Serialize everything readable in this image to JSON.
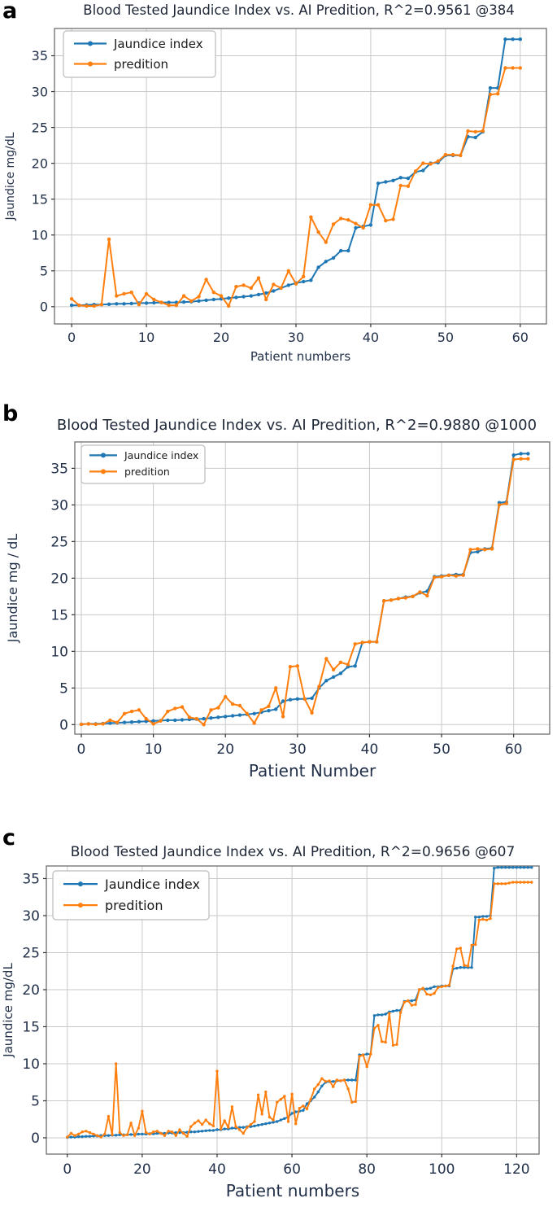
{
  "page": {
    "background": "#ffffff"
  },
  "text_colors": {
    "axis": "#22304a",
    "title": "#1e2736",
    "panel_letter": "#000000",
    "grid": "#c9c9c9",
    "spine": "#6e6e6e"
  },
  "panels": [
    {
      "letter": "a"
    },
    {
      "letter": "b"
    },
    {
      "letter": "c"
    }
  ],
  "chart_data": [
    {
      "type": "line",
      "title": "Blood Tested Jaundice Index vs. AI Predition, R^2=0.9561 @384",
      "xlabel": "Patient numbers",
      "ylabel": "Jaundice mg/dL",
      "xlim": [
        -2.3,
        63.5
      ],
      "ylim": [
        -2.4,
        38.8
      ],
      "xticks": [
        0,
        10,
        20,
        30,
        40,
        50,
        60
      ],
      "yticks": [
        0,
        5,
        10,
        15,
        20,
        25,
        30,
        35
      ],
      "grid": true,
      "legend_position": "upper-left",
      "series": [
        {
          "name": "Jaundice index",
          "color": "#1f77b4",
          "values": [
            0.2,
            0.2,
            0.25,
            0.3,
            0.3,
            0.35,
            0.4,
            0.4,
            0.45,
            0.5,
            0.5,
            0.55,
            0.6,
            0.6,
            0.6,
            0.65,
            0.7,
            0.8,
            0.9,
            1.0,
            1.1,
            1.2,
            1.3,
            1.4,
            1.5,
            1.7,
            1.9,
            2.2,
            2.6,
            3.0,
            3.3,
            3.5,
            3.7,
            5.5,
            6.3,
            6.8,
            7.8,
            7.8,
            11.0,
            11.2,
            11.4,
            17.2,
            17.4,
            17.6,
            18.0,
            17.9,
            18.8,
            19.0,
            20.0,
            20.1,
            21.1,
            21.1,
            21.1,
            23.7,
            23.6,
            24.4,
            30.5,
            30.5,
            37.3,
            37.3,
            37.3
          ]
        },
        {
          "name": "predition",
          "color": "#ff7f0e",
          "values": [
            1.1,
            0.2,
            0.1,
            0.1,
            0.3,
            9.4,
            1.5,
            1.8,
            2.0,
            0.3,
            1.8,
            1.0,
            0.6,
            0.2,
            0.2,
            1.5,
            0.8,
            1.4,
            3.8,
            2.0,
            1.5,
            0.1,
            2.8,
            3.0,
            2.6,
            4.0,
            1.0,
            3.1,
            2.6,
            5.0,
            3.2,
            4.2,
            12.5,
            10.4,
            9.0,
            11.5,
            12.3,
            12.1,
            11.6,
            11.0,
            14.2,
            14.2,
            12.0,
            12.2,
            16.9,
            16.8,
            18.9,
            20.0,
            19.9,
            20.3,
            21.2,
            21.2,
            21.1,
            24.5,
            24.4,
            24.5,
            29.6,
            29.7,
            33.3,
            33.3,
            33.3
          ]
        }
      ]
    },
    {
      "type": "line",
      "title": "Blood Tested Jaundice Index vs. AI Predition, R^2=0.9880 @1000",
      "xlabel": "Patient Number",
      "ylabel": "Jaundice mg / dL",
      "xlim": [
        -0.9,
        65
      ],
      "ylim": [
        -1.3,
        38.6
      ],
      "xticks": [
        0,
        10,
        20,
        30,
        40,
        50,
        60
      ],
      "yticks": [
        0,
        5,
        10,
        15,
        20,
        25,
        30,
        35
      ],
      "grid": true,
      "legend_position": "upper-left",
      "series": [
        {
          "name": "Jaundice index",
          "color": "#1f77b4",
          "values": [
            0.05,
            0.1,
            0.1,
            0.15,
            0.2,
            0.25,
            0.3,
            0.35,
            0.4,
            0.45,
            0.5,
            0.55,
            0.6,
            0.6,
            0.65,
            0.7,
            0.75,
            0.8,
            0.9,
            1.0,
            1.1,
            1.2,
            1.3,
            1.4,
            1.5,
            1.7,
            1.9,
            2.1,
            3.2,
            3.4,
            3.5,
            3.5,
            3.6,
            5.0,
            6.0,
            6.5,
            7.0,
            7.9,
            8.0,
            11.2,
            11.3,
            11.3,
            16.9,
            17.0,
            17.2,
            17.4,
            17.5,
            18.0,
            18.2,
            20.2,
            20.3,
            20.4,
            20.5,
            20.5,
            23.5,
            23.6,
            24.0,
            24.1,
            30.3,
            30.4,
            36.8,
            37.0,
            37.0
          ]
        },
        {
          "name": "predition",
          "color": "#ff7f0e",
          "values": [
            0.05,
            0.1,
            0.05,
            0.1,
            0.6,
            0.3,
            1.5,
            1.8,
            2.0,
            0.8,
            0.1,
            0.5,
            1.8,
            2.2,
            2.4,
            1.0,
            0.8,
            0.0,
            2.0,
            2.3,
            3.8,
            2.8,
            2.6,
            1.5,
            0.2,
            2.0,
            2.5,
            5.0,
            1.1,
            7.9,
            8.0,
            3.5,
            1.6,
            5.2,
            9.0,
            7.5,
            8.5,
            8.2,
            11.0,
            11.2,
            11.3,
            11.3,
            16.9,
            17.0,
            17.2,
            17.3,
            17.5,
            18.1,
            17.6,
            20.1,
            20.2,
            20.4,
            20.3,
            20.4,
            23.9,
            24.0,
            23.9,
            24.0,
            30.0,
            30.2,
            36.2,
            36.3,
            36.3
          ]
        }
      ]
    },
    {
      "type": "line",
      "title": "Blood Tested Jaundice Index vs. AI Predition, R^2=0.9656 @607",
      "xlabel": "Patient numbers",
      "ylabel": "Jaundice mg/dL",
      "xlim": [
        -5.6,
        126
      ],
      "ylim": [
        -2.2,
        36.7
      ],
      "xticks": [
        0,
        20,
        40,
        60,
        80,
        100,
        120
      ],
      "yticks": [
        0,
        5,
        10,
        15,
        20,
        25,
        30,
        35
      ],
      "grid": true,
      "legend_position": "upper-left",
      "series": [
        {
          "name": "Jaundice index",
          "color": "#1f77b4",
          "values": [
            0.05,
            0.1,
            0.1,
            0.15,
            0.15,
            0.2,
            0.2,
            0.25,
            0.25,
            0.3,
            0.3,
            0.3,
            0.35,
            0.35,
            0.4,
            0.4,
            0.4,
            0.45,
            0.45,
            0.5,
            0.5,
            0.5,
            0.55,
            0.55,
            0.6,
            0.6,
            0.6,
            0.65,
            0.65,
            0.7,
            0.7,
            0.7,
            0.75,
            0.8,
            0.8,
            0.85,
            0.9,
            0.95,
            1.0,
            1.0,
            1.1,
            1.1,
            1.2,
            1.2,
            1.3,
            1.3,
            1.4,
            1.4,
            1.5,
            1.5,
            1.6,
            1.7,
            1.8,
            1.9,
            2.0,
            2.1,
            2.2,
            2.4,
            2.6,
            2.8,
            3.3,
            3.5,
            3.6,
            3.7,
            4.6,
            5.0,
            5.5,
            6.2,
            7.0,
            7.5,
            7.6,
            7.6,
            7.7,
            7.7,
            7.8,
            7.8,
            7.8,
            7.8,
            11.2,
            11.2,
            11.3,
            11.3,
            16.5,
            16.6,
            16.6,
            16.7,
            17.0,
            17.1,
            17.2,
            17.2,
            18.4,
            18.5,
            18.5,
            18.6,
            20.0,
            20.1,
            20.1,
            20.2,
            20.4,
            20.4,
            20.5,
            20.5,
            20.5,
            22.8,
            22.9,
            23.0,
            23.0,
            23.0,
            23.0,
            29.8,
            29.8,
            29.9,
            29.9,
            30.0,
            36.4,
            36.5,
            36.5,
            36.5,
            36.5,
            36.5,
            36.5,
            36.5,
            36.5,
            36.5,
            36.5
          ]
        },
        {
          "name": "predition",
          "color": "#ff7f0e",
          "values": [
            0.1,
            0.6,
            0.3,
            0.5,
            0.8,
            0.9,
            0.7,
            0.5,
            0.3,
            0.1,
            0.5,
            2.9,
            0.4,
            10.0,
            0.7,
            0.3,
            0.4,
            2.0,
            0.3,
            1.3,
            3.6,
            0.7,
            0.5,
            0.8,
            0.9,
            0.6,
            0.3,
            0.9,
            0.8,
            0.3,
            1.1,
            0.6,
            0.2,
            1.5,
            2.0,
            2.3,
            1.8,
            2.4,
            1.9,
            1.6,
            9.0,
            1.2,
            2.3,
            1.4,
            4.2,
            1.5,
            1.1,
            0.6,
            1.4,
            1.8,
            2.2,
            5.8,
            3.2,
            6.2,
            2.8,
            2.4,
            4.8,
            5.2,
            5.6,
            2.2,
            5.9,
            1.9,
            4.0,
            4.3,
            3.9,
            5.2,
            6.6,
            7.2,
            8.0,
            7.6,
            7.7,
            6.9,
            7.8,
            7.7,
            7.8,
            6.6,
            4.8,
            4.9,
            11.0,
            11.2,
            9.6,
            11.3,
            14.8,
            15.2,
            13.0,
            12.9,
            16.8,
            12.5,
            12.6,
            16.9,
            18.3,
            18.5,
            17.9,
            18.0,
            20.0,
            20.2,
            19.4,
            19.3,
            19.5,
            20.3,
            20.4,
            20.5,
            20.6,
            23.2,
            25.5,
            25.6,
            23.3,
            23.2,
            26.0,
            26.1,
            29.4,
            29.5,
            29.4,
            29.6,
            34.3,
            34.3,
            34.3,
            34.3,
            34.4,
            34.5,
            34.5,
            34.5,
            34.5,
            34.5,
            34.5
          ]
        }
      ]
    }
  ]
}
